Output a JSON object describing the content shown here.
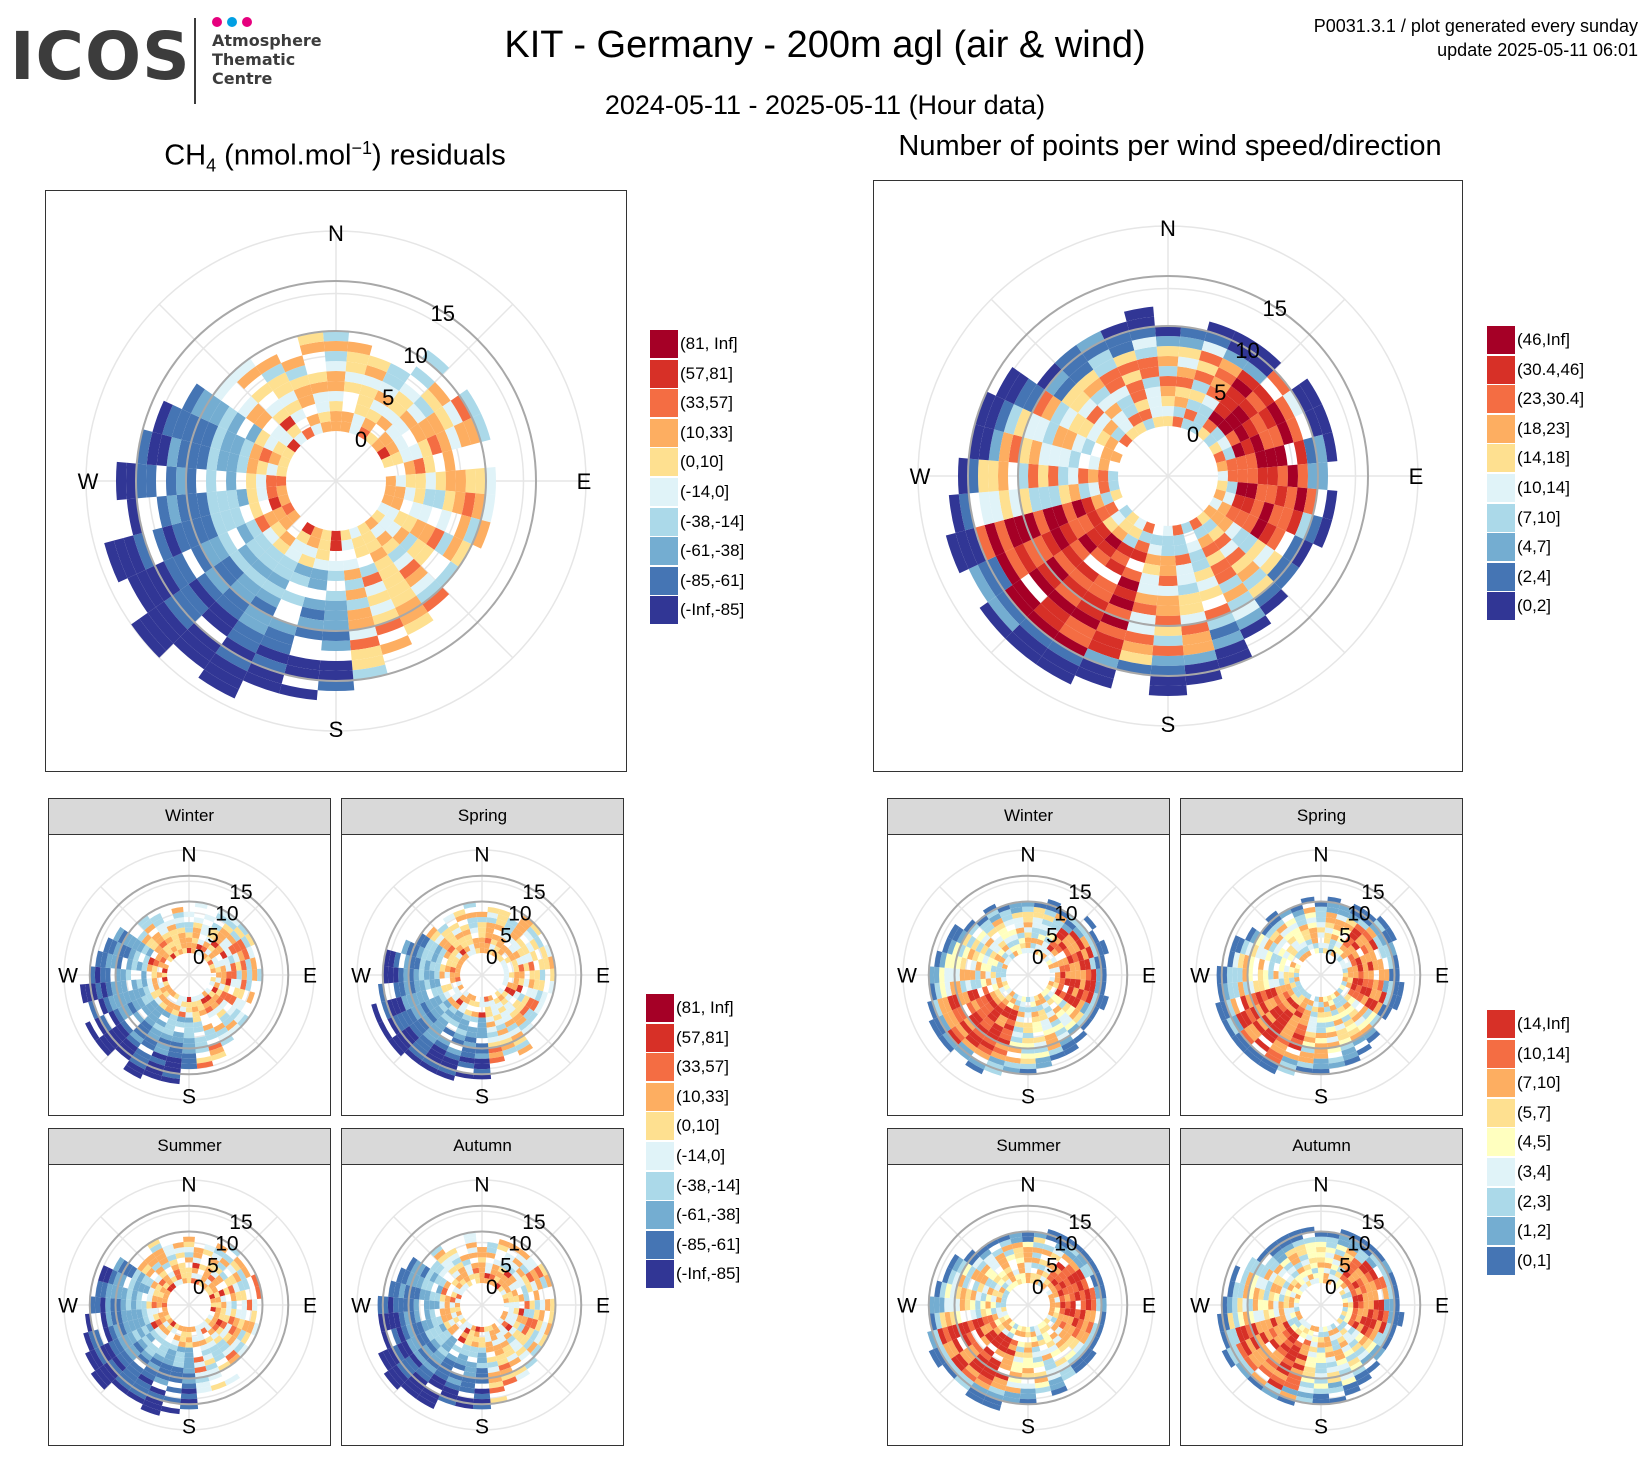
{
  "header": {
    "logo_word": "ICOS",
    "logo_sub_1": "Atmosphere",
    "logo_sub_2": "Thematic",
    "logo_sub_3": "Centre",
    "title": "KIT - Germany - 200m agl (air & wind)",
    "subtitle": "2024-05-11 - 2025-05-11 (Hour data)",
    "meta_line1": "P0031.3.1 / plot generated every sunday",
    "meta_line2": "update  2025-05-11 06:01"
  },
  "colors": {
    "brand_dots": [
      "#e6007e",
      "#009fe3",
      "#e6007e"
    ],
    "residual_palette": [
      "#a50026",
      "#d73027",
      "#f46d43",
      "#fdae61",
      "#fee090",
      "#e0f3f8",
      "#abd9e9",
      "#74add1",
      "#4575b4",
      "#313695"
    ],
    "count_palette": [
      "#a50026",
      "#d73027",
      "#f46d43",
      "#fdae61",
      "#fee090",
      "#e0f3f8",
      "#abd9e9",
      "#74add1",
      "#4575b4",
      "#313695"
    ],
    "count_season_palette": [
      "#d73027",
      "#f46d43",
      "#fdae61",
      "#fee090",
      "#ffffbf",
      "#e0f3f8",
      "#abd9e9",
      "#74add1",
      "#4575b4"
    ]
  },
  "chart_data": [
    {
      "id": "ch4-main",
      "type": "polar-heatmap",
      "title_main": "CH",
      "title_sub": "4",
      "title_mid": " (nmol.mol",
      "title_sup": "−1",
      "title_end": ") residuals",
      "compass": [
        "N",
        "E",
        "S",
        "W"
      ],
      "radial_ticks": [
        "0",
        "5",
        "10",
        "15"
      ],
      "radial_range": [
        0,
        20
      ],
      "legend": [
        "(81, Inf]",
        "(57,81]",
        "(33,57]",
        "(10,33]",
        "(0,10]",
        "(-14,0]",
        "(-38,-14]",
        "(-61,-38]",
        "(-85,-61]",
        "(-Inf,-85]"
      ],
      "values_note": "class index per (direction, speed) bin: 0=(81,Inf] ... 9=(-Inf,-85]",
      "seed": 11
    },
    {
      "id": "count-main",
      "type": "polar-heatmap",
      "title": "Number of points per wind speed/direction",
      "compass": [
        "N",
        "E",
        "S",
        "W"
      ],
      "radial_ticks": [
        "0",
        "5",
        "10",
        "15"
      ],
      "radial_range": [
        0,
        20
      ],
      "legend": [
        "(46,Inf]",
        "(30.4,46]",
        "(23,30.4]",
        "(18,23]",
        "(14,18]",
        "(10,14]",
        "(7,10]",
        "(4,7]",
        "(2,4]",
        "(0,2]"
      ],
      "seed": 23
    },
    {
      "id": "ch4-seasons",
      "type": "polar-heatmap-facets",
      "facets": [
        "Winter",
        "Spring",
        "Summer",
        "Autumn"
      ],
      "compass": [
        "N",
        "E",
        "S",
        "W"
      ],
      "radial_ticks": [
        "0",
        "5",
        "10",
        "15"
      ],
      "legend": [
        "(81, Inf]",
        "(57,81]",
        "(33,57]",
        "(10,33]",
        "(0,10]",
        "(-14,0]",
        "(-38,-14]",
        "(-61,-38]",
        "(-85,-61]",
        "(-Inf,-85]"
      ],
      "seed": 37
    },
    {
      "id": "count-seasons",
      "type": "polar-heatmap-facets",
      "facets": [
        "Winter",
        "Spring",
        "Summer",
        "Autumn"
      ],
      "compass": [
        "N",
        "E",
        "S",
        "W"
      ],
      "radial_ticks": [
        "0",
        "5",
        "10",
        "15"
      ],
      "legend": [
        "(14,Inf]",
        "(10,14]",
        "(7,10]",
        "(5,7]",
        "(4,5]",
        "(3,4]",
        "(2,3]",
        "(1,2]",
        "(0,1]"
      ],
      "seed": 53
    }
  ]
}
